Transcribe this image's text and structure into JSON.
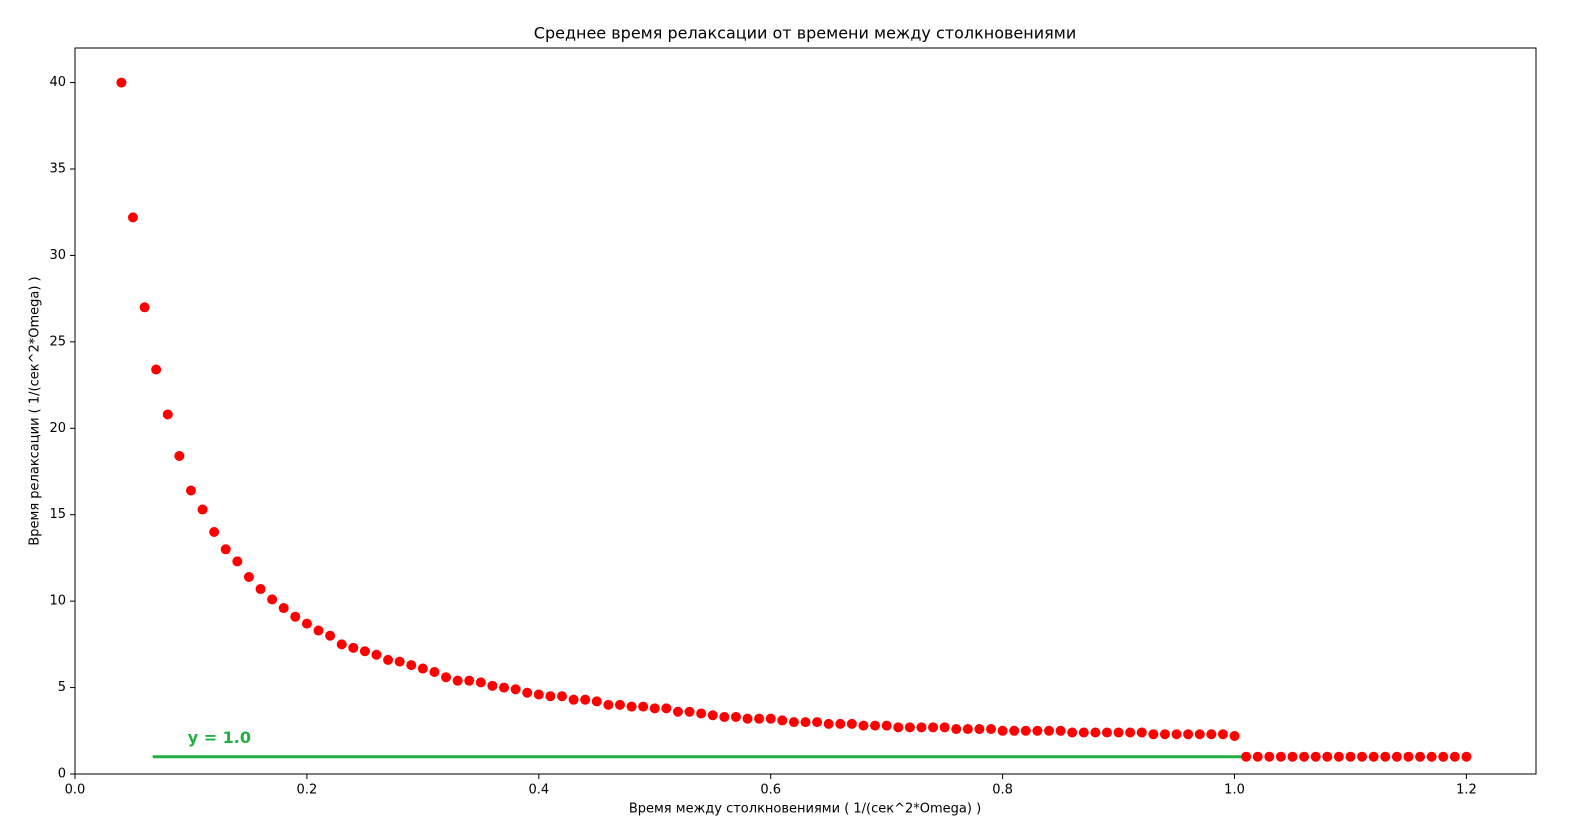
{
  "chart_data": {
    "type": "scatter",
    "title": "Среднее время релаксации от времени между столкновениями",
    "x_label": "Время между столкновениями ( 1/(сек^2*Omega) )",
    "y_label": "Время релаксации ( 1/(сек^2*Omega) )",
    "x": [
      0.04,
      0.05,
      0.06,
      0.07,
      0.08,
      0.09,
      0.1,
      0.11,
      0.12,
      0.13,
      0.14,
      0.15,
      0.16,
      0.17,
      0.18,
      0.19,
      0.2,
      0.21,
      0.22,
      0.23,
      0.24,
      0.25,
      0.26,
      0.27,
      0.28,
      0.29,
      0.3,
      0.31,
      0.32,
      0.33,
      0.34,
      0.35,
      0.36,
      0.37,
      0.38,
      0.39,
      0.4,
      0.41,
      0.42,
      0.43,
      0.44,
      0.45,
      0.46,
      0.47,
      0.48,
      0.49,
      0.5,
      0.51,
      0.52,
      0.53,
      0.54,
      0.55,
      0.56,
      0.57,
      0.58,
      0.59,
      0.6,
      0.61,
      0.62,
      0.63,
      0.64,
      0.65,
      0.66,
      0.67,
      0.68,
      0.69,
      0.7,
      0.71,
      0.72,
      0.73,
      0.74,
      0.75,
      0.76,
      0.77,
      0.78,
      0.79,
      0.8,
      0.81,
      0.82,
      0.83,
      0.84,
      0.85,
      0.86,
      0.87,
      0.88,
      0.89,
      0.9,
      0.91,
      0.92,
      0.93,
      0.94,
      0.95,
      0.96,
      0.97,
      0.98,
      0.99,
      1.0,
      1.01,
      1.02,
      1.03,
      1.04,
      1.05,
      1.06,
      1.07,
      1.08,
      1.09,
      1.1,
      1.11,
      1.12,
      1.13,
      1.14,
      1.15,
      1.16,
      1.17,
      1.18,
      1.19,
      1.2
    ],
    "series": [
      {
        "color": "#ff0000",
        "values": [
          40.0,
          32.2,
          27.0,
          23.4,
          20.8,
          18.4,
          16.4,
          15.3,
          14.0,
          13.0,
          12.3,
          11.4,
          10.7,
          10.1,
          9.6,
          9.1,
          8.7,
          8.3,
          8.0,
          7.5,
          7.3,
          7.1,
          6.9,
          6.6,
          6.5,
          6.3,
          6.1,
          5.9,
          5.6,
          5.4,
          5.4,
          5.3,
          5.1,
          5.0,
          4.9,
          4.7,
          4.6,
          4.5,
          4.5,
          4.3,
          4.3,
          4.2,
          4.0,
          4.0,
          3.9,
          3.9,
          3.8,
          3.8,
          3.6,
          3.6,
          3.5,
          3.4,
          3.3,
          3.3,
          3.2,
          3.2,
          3.2,
          3.1,
          3.0,
          3.0,
          3.0,
          2.9,
          2.9,
          2.9,
          2.8,
          2.8,
          2.8,
          2.7,
          2.7,
          2.7,
          2.7,
          2.7,
          2.6,
          2.6,
          2.6,
          2.6,
          2.5,
          2.5,
          2.5,
          2.5,
          2.5,
          2.5,
          2.4,
          2.4,
          2.4,
          2.4,
          2.4,
          2.4,
          2.4,
          2.3,
          2.3,
          2.3,
          2.3,
          2.3,
          2.3,
          2.3,
          2.2,
          1.0,
          1.0,
          1.0,
          1.0,
          1.0,
          1.0,
          1.0,
          1.0,
          1.0,
          1.0,
          1.0,
          1.0,
          1.0,
          1.0,
          1.0,
          1.0,
          1.0,
          1.0,
          1.0,
          1.0
        ]
      }
    ],
    "hline": {
      "value": 1.0,
      "xmin": 0.067,
      "xmax": 1.01,
      "label": "y = 1.0",
      "color": "#22b045"
    },
    "xlim": [
      0,
      1.26
    ],
    "ylim": [
      0,
      42.0
    ],
    "xticks": [
      {
        "value": 0,
        "label": "0.0"
      },
      0.2,
      0.4,
      0.6,
      0.8,
      {
        "value": 1.0,
        "label": "1.0"
      },
      1.2
    ],
    "yticks": [
      0,
      5,
      10,
      15,
      20,
      25,
      30,
      35,
      40
    ]
  }
}
